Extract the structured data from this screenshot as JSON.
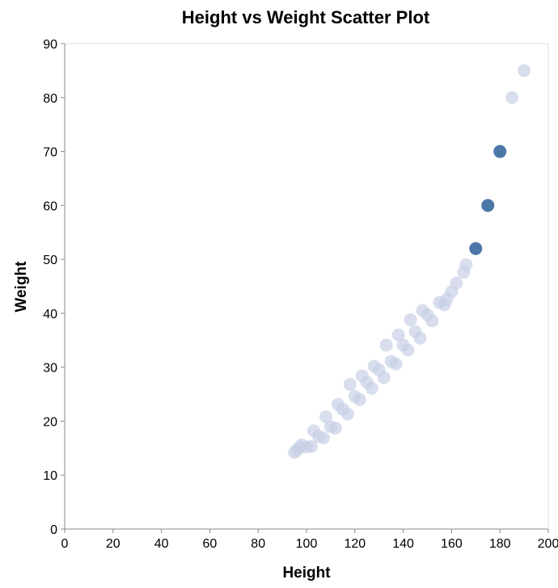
{
  "chart_data": {
    "type": "scatter",
    "title": "Height vs Weight Scatter Plot",
    "xlabel": "Height",
    "ylabel": "Weight",
    "xlim": [
      0,
      200
    ],
    "ylim": [
      0,
      90
    ],
    "xticks": [
      0,
      20,
      40,
      60,
      80,
      100,
      120,
      140,
      160,
      180,
      200
    ],
    "yticks": [
      0,
      10,
      20,
      30,
      40,
      50,
      60,
      70,
      80,
      90
    ],
    "grid": false,
    "colors": {
      "point": "#4c78a8",
      "faded_point": "#c8d0e6",
      "frame": "#dddddd",
      "axis": "#888888"
    },
    "series": [
      {
        "points": [
          {
            "x": 95,
            "y": 14.2
          },
          {
            "x": 96,
            "y": 14.6
          },
          {
            "x": 97,
            "y": 15.1
          },
          {
            "x": 98,
            "y": 15.6
          },
          {
            "x": 100,
            "y": 15.2
          },
          {
            "x": 102,
            "y": 15.3
          },
          {
            "x": 103,
            "y": 18.2
          },
          {
            "x": 105,
            "y": 17.2
          },
          {
            "x": 107,
            "y": 16.9
          },
          {
            "x": 108,
            "y": 20.8
          },
          {
            "x": 110,
            "y": 19.0
          },
          {
            "x": 112,
            "y": 18.7
          },
          {
            "x": 113,
            "y": 23.1
          },
          {
            "x": 115,
            "y": 22.2
          },
          {
            "x": 117,
            "y": 21.3
          },
          {
            "x": 118,
            "y": 26.8
          },
          {
            "x": 120,
            "y": 24.6
          },
          {
            "x": 122,
            "y": 24.0
          },
          {
            "x": 123,
            "y": 28.4
          },
          {
            "x": 125,
            "y": 27.2
          },
          {
            "x": 127,
            "y": 26.1
          },
          {
            "x": 128,
            "y": 30.2
          },
          {
            "x": 130,
            "y": 29.5
          },
          {
            "x": 132,
            "y": 28.1
          },
          {
            "x": 133,
            "y": 34.1
          },
          {
            "x": 135,
            "y": 31.1
          },
          {
            "x": 137,
            "y": 30.6
          },
          {
            "x": 138,
            "y": 36.0
          },
          {
            "x": 140,
            "y": 34.1
          },
          {
            "x": 142,
            "y": 33.2
          },
          {
            "x": 143,
            "y": 38.8
          },
          {
            "x": 145,
            "y": 36.6
          },
          {
            "x": 147,
            "y": 35.4
          },
          {
            "x": 148,
            "y": 40.5
          },
          {
            "x": 150,
            "y": 39.7
          },
          {
            "x": 152,
            "y": 38.6
          },
          {
            "x": 155,
            "y": 42.0
          },
          {
            "x": 157,
            "y": 41.6
          },
          {
            "x": 158,
            "y": 42.6
          },
          {
            "x": 160,
            "y": 44.0
          },
          {
            "x": 162,
            "y": 45.6
          },
          {
            "x": 165,
            "y": 47.6
          },
          {
            "x": 166,
            "y": 49.0
          },
          {
            "x": 170,
            "y": 52.0,
            "highlight": true
          },
          {
            "x": 175,
            "y": 60.0,
            "highlight": true
          },
          {
            "x": 180,
            "y": 70.0,
            "highlight": true
          },
          {
            "x": 185,
            "y": 80.0
          },
          {
            "x": 190,
            "y": 85.0
          }
        ]
      }
    ]
  }
}
